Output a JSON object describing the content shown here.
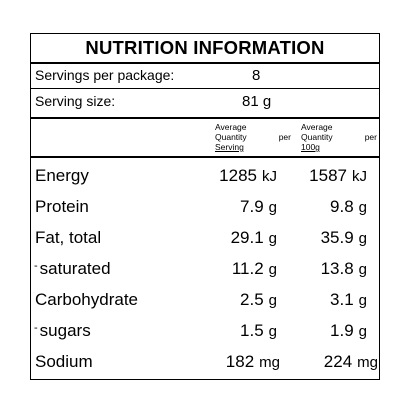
{
  "title": "NUTRITION INFORMATION",
  "servings": {
    "label": "Servings per package:",
    "value": "8"
  },
  "serving_size": {
    "label": "Serving size:",
    "value": "81 g"
  },
  "columns": {
    "per_serving": [
      "Average",
      "Quantity",
      "per",
      "Serving"
    ],
    "per_100g": [
      "Average",
      "Quantity",
      "per",
      "100g"
    ]
  },
  "rows": [
    {
      "name": "Energy",
      "serving": "1285",
      "serving_unit": "kJ",
      "per100": "1587",
      "per100_unit": "kJ"
    },
    {
      "name": "Protein",
      "serving": "7.9",
      "serving_unit": "g",
      "per100": "9.8",
      "per100_unit": "g"
    },
    {
      "name": "Fat, total",
      "serving": "29.1",
      "serving_unit": "g",
      "per100": "35.9",
      "per100_unit": "g"
    },
    {
      "name": "saturated",
      "serving": "11.2",
      "serving_unit": "g",
      "per100": "13.8",
      "per100_unit": "g",
      "dash": "-"
    },
    {
      "name": "Carbohydrate",
      "serving": "2.5",
      "serving_unit": "g",
      "per100": "3.1",
      "per100_unit": "g"
    },
    {
      "name": "sugars",
      "serving": "1.5",
      "serving_unit": "g",
      "per100": "1.9",
      "per100_unit": "g",
      "dash": "-"
    },
    {
      "name": "Sodium",
      "serving": "182",
      "serving_unit": "mg",
      "per100": "224",
      "per100_unit": "mg"
    }
  ]
}
